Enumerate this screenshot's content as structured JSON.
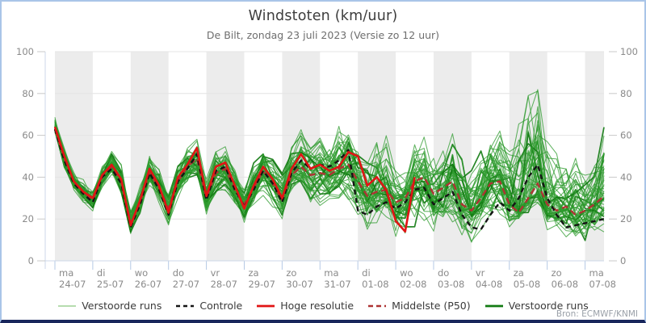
{
  "header": {
    "title": "Windstoten (km/uur)",
    "subtitle": "De Bilt, zondag 23 juli 2023 (Versie zo 12 uur)"
  },
  "attribution": "Bron: ECMWF/KNMI",
  "legend": [
    {
      "label": "Verstoorde runs",
      "color": "#b6dcae",
      "dash": "none",
      "width": 2
    },
    {
      "label": "Controle",
      "color": "#151515",
      "dash": "5 4",
      "width": 2.6
    },
    {
      "label": "Hoge resolutie",
      "color": "#e11414",
      "dash": "none",
      "width": 2.8
    },
    {
      "label": "Middelste (P50)",
      "color": "#ae3333",
      "dash": "6 4",
      "width": 2.6
    },
    {
      "label": "Verstoorde runs",
      "color": "#117a11",
      "dash": "none",
      "width": 2.8
    }
  ],
  "chart_data": {
    "type": "line",
    "title": "Windstoten (km/uur)",
    "xlabel": "",
    "ylabel": "",
    "ylim": [
      0,
      100
    ],
    "yticks": [
      0,
      20,
      40,
      60,
      80,
      100
    ],
    "grid": "horizontal",
    "legend_position": "bottom",
    "time_step_hours": 6,
    "total_hours": 348,
    "x_day_labels": [
      {
        "dow": "ma",
        "date": "24-07"
      },
      {
        "dow": "di",
        "date": "25-07"
      },
      {
        "dow": "wo",
        "date": "26-07"
      },
      {
        "dow": "do",
        "date": "27-07"
      },
      {
        "dow": "vr",
        "date": "28-07"
      },
      {
        "dow": "za",
        "date": "29-07"
      },
      {
        "dow": "zo",
        "date": "30-07"
      },
      {
        "dow": "ma",
        "date": "31-07"
      },
      {
        "dow": "di",
        "date": "01-08"
      },
      {
        "dow": "wo",
        "date": "02-08"
      },
      {
        "dow": "do",
        "date": "03-08"
      },
      {
        "dow": "vr",
        "date": "04-08"
      },
      {
        "dow": "za",
        "date": "05-08"
      },
      {
        "dow": "zo",
        "date": "06-08"
      },
      {
        "dow": "ma",
        "date": "07-08"
      }
    ],
    "series": [
      {
        "name": "Controle",
        "color": "#151515",
        "dash": "6 4.5",
        "width": 2.4,
        "values": [
          63,
          48,
          37,
          32,
          28,
          40,
          44,
          37,
          16,
          27,
          42,
          34,
          22,
          38,
          44,
          51,
          29,
          43,
          45,
          34,
          26,
          34,
          43,
          37,
          28,
          42,
          48,
          44,
          46,
          45,
          48,
          53,
          24,
          22,
          26,
          28,
          25,
          28,
          34,
          35,
          27,
          30,
          33,
          22,
          16,
          15,
          22,
          28,
          24,
          30,
          40,
          46,
          30,
          22,
          16,
          17,
          18,
          19,
          20
        ]
      },
      {
        "name": "Hoge resolutie",
        "color": "#e11414",
        "dash": "none",
        "width": 2.6,
        "values": [
          64,
          50,
          38,
          33,
          30,
          41,
          46,
          39,
          17,
          29,
          44,
          36,
          23,
          40,
          46,
          54,
          31,
          45,
          47,
          36,
          25,
          36,
          45,
          39,
          30,
          44,
          51,
          44,
          46,
          43,
          45,
          52,
          50,
          36,
          40,
          34,
          19,
          14,
          40
        ]
      },
      {
        "name": "Middelste (P50)",
        "color": "#ae3333",
        "dash": "8 5",
        "width": 2.4,
        "values": [
          63,
          49,
          38,
          33,
          29,
          40,
          45,
          38,
          18,
          28,
          42,
          35,
          25,
          38,
          45,
          49,
          30,
          42,
          44,
          34,
          27,
          35,
          43,
          37,
          29,
          41,
          45,
          41,
          42,
          41,
          44,
          46,
          38,
          31,
          33,
          34,
          28,
          30,
          38,
          40,
          32,
          35,
          38,
          27,
          24,
          30,
          37,
          38,
          27,
          23,
          30,
          37,
          27,
          24,
          26,
          22,
          24,
          27,
          31
        ]
      }
    ],
    "ensemble": {
      "name": "Verstoorde runs",
      "count": 50,
      "seed": 20230723,
      "color": "#2e9b2e",
      "highlight_color": "#117a11",
      "envelope_min": [
        62,
        44,
        33,
        28,
        24,
        34,
        40,
        32,
        13,
        22,
        36,
        28,
        16,
        30,
        38,
        40,
        22,
        32,
        34,
        26,
        17,
        26,
        32,
        26,
        18,
        30,
        34,
        28,
        26,
        28,
        30,
        30,
        20,
        14,
        18,
        20,
        12,
        10,
        16,
        20,
        14,
        16,
        18,
        12,
        10,
        12,
        18,
        20,
        14,
        18,
        22,
        24,
        14,
        12,
        10,
        10,
        8,
        12,
        14
      ],
      "envelope_max": [
        70,
        54,
        42,
        38,
        34,
        46,
        52,
        45,
        26,
        36,
        52,
        44,
        34,
        48,
        56,
        58,
        40,
        52,
        54,
        46,
        36,
        46,
        54,
        48,
        42,
        56,
        62,
        56,
        58,
        56,
        64,
        66,
        56,
        48,
        58,
        62,
        48,
        44,
        56,
        62,
        52,
        56,
        60,
        50,
        44,
        52,
        60,
        62,
        55,
        66,
        78,
        82,
        60,
        52,
        46,
        48,
        44,
        56,
        66
      ]
    },
    "colors": {
      "band": "#ececec",
      "grid": "#e4e4e4",
      "axis": "#ccd7e8",
      "x_tick": "#b5c9e5",
      "tick_label": "#8a8a8a"
    }
  }
}
